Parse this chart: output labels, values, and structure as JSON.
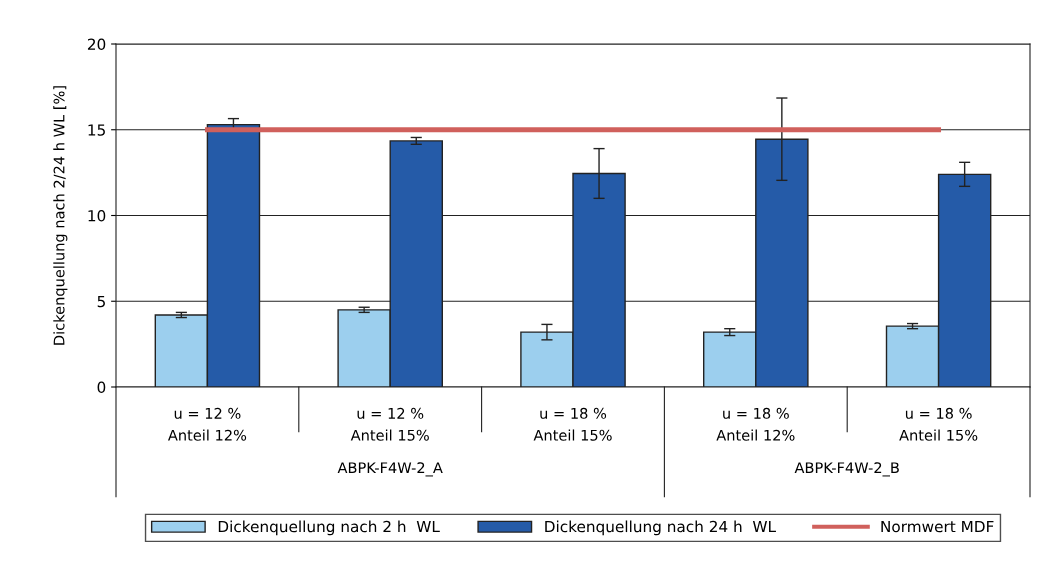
{
  "chart_data": {
    "type": "bar",
    "ylabel": "Dickenquellung nach 2/24 h WL [%]",
    "categories": [
      "u = 12 %\nAnteil 12%",
      "u = 12 %\nAnteil 15%",
      "u = 18 %\nAnteil 15%",
      "u = 18 %\nAnteil 12%",
      "u = 18 %\nAnteil 15%"
    ],
    "series": [
      {
        "name": "Dickenquellung nach 2 h  WL",
        "color": "#9ccfee",
        "values": [
          4.2,
          4.5,
          3.2,
          3.2,
          3.55
        ],
        "errors": [
          0.15,
          0.15,
          0.45,
          0.2,
          0.15
        ]
      },
      {
        "name": "Dickenquellung nach 24 h  WL",
        "color": "#255ba8",
        "values": [
          15.3,
          14.35,
          12.45,
          14.45,
          12.4
        ],
        "errors": [
          0.35,
          0.2,
          1.45,
          2.4,
          0.7
        ]
      },
      {
        "name": "Normwert MDF",
        "type": "line",
        "color": "#d0605c",
        "values": [
          15,
          15,
          15,
          15,
          15
        ]
      }
    ],
    "annotations": [
      "ABPK-F4W-2_A",
      "ABPK-F4W-2_B"
    ],
    "ylim": [
      0,
      20
    ],
    "yticks": [
      0,
      5,
      10,
      15,
      20
    ],
    "grid": "y",
    "legend": "bottom",
    "marker": "none",
    "line_style": "solid"
  }
}
